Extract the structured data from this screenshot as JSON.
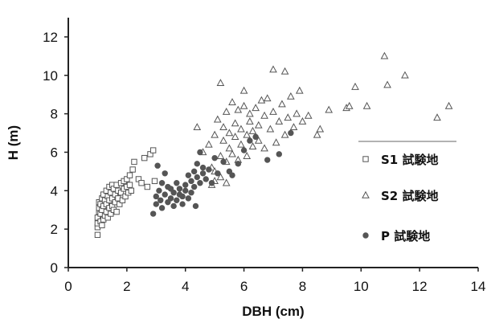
{
  "chart_data": {
    "type": "scatter",
    "title": "",
    "xlabel": "DBH (cm)",
    "ylabel": "H (m)",
    "xlim": [
      0,
      14
    ],
    "ylim": [
      0,
      13
    ],
    "xticks": [
      "0",
      "2",
      "4",
      "6",
      "8",
      "10",
      "12",
      "14"
    ],
    "yticks": [
      "0",
      "2",
      "4",
      "6",
      "8",
      "10",
      "12"
    ],
    "legend_position": "right",
    "series": [
      {
        "name": "S1 試験地",
        "marker": "square-open",
        "color": "#555555",
        "points": [
          [
            1.0,
            1.7
          ],
          [
            1.0,
            2.1
          ],
          [
            1.0,
            2.3
          ],
          [
            1.0,
            2.6
          ],
          [
            1.05,
            2.9
          ],
          [
            1.05,
            3.1
          ],
          [
            1.05,
            3.4
          ],
          [
            1.1,
            2.4
          ],
          [
            1.1,
            2.8
          ],
          [
            1.1,
            3.3
          ],
          [
            1.15,
            2.2
          ],
          [
            1.15,
            3.0
          ],
          [
            1.15,
            3.6
          ],
          [
            1.2,
            2.5
          ],
          [
            1.2,
            3.2
          ],
          [
            1.2,
            3.8
          ],
          [
            1.25,
            2.7
          ],
          [
            1.25,
            3.5
          ],
          [
            1.3,
            2.9
          ],
          [
            1.3,
            3.3
          ],
          [
            1.3,
            4.0
          ],
          [
            1.35,
            2.6
          ],
          [
            1.35,
            3.7
          ],
          [
            1.4,
            3.1
          ],
          [
            1.4,
            3.5
          ],
          [
            1.4,
            4.2
          ],
          [
            1.45,
            2.8
          ],
          [
            1.45,
            3.9
          ],
          [
            1.5,
            3.2
          ],
          [
            1.5,
            3.6
          ],
          [
            1.5,
            4.3
          ],
          [
            1.55,
            3.0
          ],
          [
            1.55,
            4.1
          ],
          [
            1.6,
            3.4
          ],
          [
            1.6,
            3.8
          ],
          [
            1.65,
            2.9
          ],
          [
            1.65,
            4.3
          ],
          [
            1.7,
            3.6
          ],
          [
            1.7,
            4.0
          ],
          [
            1.75,
            3.3
          ],
          [
            1.8,
            3.9
          ],
          [
            1.8,
            4.4
          ],
          [
            1.85,
            3.5
          ],
          [
            1.9,
            4.1
          ],
          [
            1.9,
            4.5
          ],
          [
            1.95,
            3.7
          ],
          [
            2.0,
            4.2
          ],
          [
            2.0,
            4.6
          ],
          [
            2.05,
            3.9
          ],
          [
            2.1,
            4.3
          ],
          [
            2.1,
            4.8
          ],
          [
            2.15,
            4.0
          ],
          [
            2.2,
            5.1
          ],
          [
            2.25,
            5.5
          ],
          [
            2.4,
            4.6
          ],
          [
            2.5,
            4.4
          ],
          [
            2.6,
            5.7
          ],
          [
            2.7,
            4.2
          ],
          [
            2.8,
            5.9
          ],
          [
            2.9,
            6.1
          ],
          [
            2.95,
            4.5
          ]
        ]
      },
      {
        "name": "S2 試験地",
        "marker": "triangle-open",
        "color": "#555555",
        "points": [
          [
            4.4,
            7.3
          ],
          [
            4.6,
            6.0
          ],
          [
            4.8,
            6.4
          ],
          [
            4.9,
            5.2
          ],
          [
            5.0,
            4.5
          ],
          [
            5.0,
            6.9
          ],
          [
            5.1,
            7.7
          ],
          [
            5.2,
            9.6
          ],
          [
            5.2,
            5.8
          ],
          [
            5.3,
            6.6
          ],
          [
            5.3,
            7.3
          ],
          [
            5.4,
            8.1
          ],
          [
            5.4,
            5.5
          ],
          [
            5.5,
            6.2
          ],
          [
            5.5,
            7.0
          ],
          [
            5.6,
            8.6
          ],
          [
            5.6,
            5.9
          ],
          [
            5.7,
            6.8
          ],
          [
            5.7,
            7.5
          ],
          [
            5.8,
            8.2
          ],
          [
            5.8,
            5.6
          ],
          [
            5.9,
            6.4
          ],
          [
            5.9,
            7.2
          ],
          [
            6.0,
            8.4
          ],
          [
            6.0,
            9.2
          ],
          [
            6.1,
            5.8
          ],
          [
            6.1,
            6.9
          ],
          [
            6.2,
            7.6
          ],
          [
            6.2,
            8.0
          ],
          [
            6.3,
            6.3
          ],
          [
            6.3,
            7.1
          ],
          [
            6.4,
            8.3
          ],
          [
            6.5,
            6.6
          ],
          [
            6.5,
            7.4
          ],
          [
            6.6,
            8.7
          ],
          [
            6.7,
            6.2
          ],
          [
            6.7,
            7.9
          ],
          [
            6.8,
            8.8
          ],
          [
            6.9,
            7.2
          ],
          [
            7.0,
            10.3
          ],
          [
            7.0,
            8.1
          ],
          [
            7.1,
            6.5
          ],
          [
            7.2,
            7.6
          ],
          [
            7.3,
            8.5
          ],
          [
            7.4,
            10.2
          ],
          [
            7.4,
            6.9
          ],
          [
            7.5,
            7.8
          ],
          [
            7.6,
            8.9
          ],
          [
            7.7,
            7.3
          ],
          [
            7.8,
            8.0
          ],
          [
            7.9,
            9.2
          ],
          [
            8.0,
            7.6
          ],
          [
            8.2,
            7.9
          ],
          [
            8.5,
            6.9
          ],
          [
            8.6,
            7.2
          ],
          [
            8.9,
            8.2
          ],
          [
            9.5,
            8.3
          ],
          [
            9.6,
            8.4
          ],
          [
            9.8,
            9.4
          ],
          [
            10.2,
            8.4
          ],
          [
            10.8,
            11.0
          ],
          [
            10.9,
            9.5
          ],
          [
            11.5,
            10.0
          ],
          [
            12.6,
            7.8
          ],
          [
            13.0,
            8.4
          ],
          [
            4.9,
            4.3
          ],
          [
            5.0,
            5.0
          ],
          [
            5.2,
            4.7
          ],
          [
            5.4,
            4.4
          ]
        ]
      },
      {
        "name": "P 試験地",
        "marker": "circle-filled",
        "color": "#555555",
        "points": [
          [
            2.9,
            2.8
          ],
          [
            3.0,
            3.3
          ],
          [
            3.0,
            3.7
          ],
          [
            3.05,
            5.3
          ],
          [
            3.1,
            4.0
          ],
          [
            3.15,
            3.5
          ],
          [
            3.2,
            4.4
          ],
          [
            3.2,
            3.1
          ],
          [
            3.3,
            3.8
          ],
          [
            3.3,
            4.9
          ],
          [
            3.4,
            3.4
          ],
          [
            3.4,
            4.2
          ],
          [
            3.5,
            3.6
          ],
          [
            3.5,
            4.1
          ],
          [
            3.6,
            3.2
          ],
          [
            3.6,
            3.9
          ],
          [
            3.7,
            4.4
          ],
          [
            3.7,
            3.5
          ],
          [
            3.8,
            3.8
          ],
          [
            3.8,
            4.1
          ],
          [
            3.9,
            3.3
          ],
          [
            3.9,
            3.7
          ],
          [
            4.0,
            4.0
          ],
          [
            4.0,
            4.3
          ],
          [
            4.1,
            3.6
          ],
          [
            4.1,
            4.8
          ],
          [
            4.2,
            3.9
          ],
          [
            4.2,
            4.5
          ],
          [
            4.3,
            5.0
          ],
          [
            4.3,
            4.2
          ],
          [
            4.35,
            3.2
          ],
          [
            4.4,
            4.7
          ],
          [
            4.4,
            5.4
          ],
          [
            4.5,
            4.4
          ],
          [
            4.5,
            6.0
          ],
          [
            4.6,
            4.9
          ],
          [
            4.6,
            5.2
          ],
          [
            4.7,
            4.6
          ],
          [
            4.8,
            5.1
          ],
          [
            4.9,
            4.4
          ],
          [
            5.0,
            5.7
          ],
          [
            5.1,
            4.9
          ],
          [
            5.3,
            5.5
          ],
          [
            5.5,
            5.0
          ],
          [
            5.6,
            4.8
          ],
          [
            5.8,
            5.4
          ],
          [
            6.0,
            6.1
          ],
          [
            6.2,
            6.6
          ],
          [
            6.4,
            6.8
          ],
          [
            6.8,
            5.6
          ],
          [
            7.2,
            5.9
          ],
          [
            7.6,
            7.0
          ]
        ]
      }
    ]
  }
}
